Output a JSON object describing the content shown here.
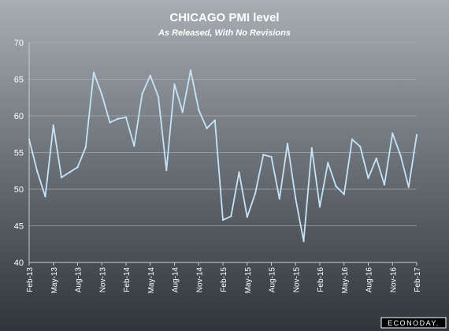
{
  "chart_data": {
    "type": "line",
    "title": "CHICAGO PMI level",
    "subtitle": "As Released, With No Revisions",
    "xlabel": "",
    "ylabel": "",
    "ylim": [
      40,
      70
    ],
    "yticks": [
      40,
      45,
      50,
      55,
      60,
      65,
      70
    ],
    "grid": true,
    "legend": "none",
    "line_color": "#c6e3f7",
    "x": [
      "Feb-13",
      "Mar-13",
      "Apr-13",
      "May-13",
      "Jun-13",
      "Jul-13",
      "Aug-13",
      "Sep-13",
      "Oct-13",
      "Nov-13",
      "Dec-13",
      "Jan-14",
      "Feb-14",
      "Mar-14",
      "Apr-14",
      "May-14",
      "Jun-14",
      "Jul-14",
      "Aug-14",
      "Sep-14",
      "Oct-14",
      "Nov-14",
      "Dec-14",
      "Jan-15",
      "Feb-15",
      "Mar-15",
      "Apr-15",
      "May-15",
      "Jun-15",
      "Jul-15",
      "Aug-15",
      "Sep-15",
      "Oct-15",
      "Nov-15",
      "Dec-15",
      "Jan-16",
      "Feb-16",
      "Mar-16",
      "Apr-16",
      "May-16",
      "Jun-16",
      "Jul-16",
      "Aug-16",
      "Sep-16",
      "Oct-16",
      "Nov-16",
      "Dec-16",
      "Jan-17",
      "Feb-17"
    ],
    "xtick_labels": [
      "Feb-13",
      "May-13",
      "Aug-13",
      "Nov-13",
      "Feb-14",
      "May-14",
      "Aug-14",
      "Nov-14",
      "Feb-15",
      "May-15",
      "Aug-15",
      "Nov-15",
      "Feb-16",
      "May-16",
      "Aug-16",
      "Nov-16",
      "Feb-17"
    ],
    "series": [
      {
        "values": [
          56.8,
          52.4,
          49.0,
          58.7,
          51.6,
          52.3,
          53.0,
          55.7,
          65.9,
          62.9,
          59.1,
          59.6,
          59.8,
          55.9,
          63.0,
          65.5,
          62.6,
          52.6,
          64.3,
          60.5,
          66.2,
          60.8,
          58.3,
          59.4,
          45.8,
          46.3,
          52.3,
          46.2,
          49.4,
          54.7,
          54.4,
          48.7,
          56.2,
          48.7,
          42.9,
          55.6,
          47.6,
          53.6,
          50.4,
          49.3,
          56.8,
          55.8,
          51.5,
          54.2,
          50.6,
          57.6,
          54.6,
          50.3,
          57.4
        ]
      }
    ]
  },
  "watermark": {
    "text": "ECONODAY."
  }
}
